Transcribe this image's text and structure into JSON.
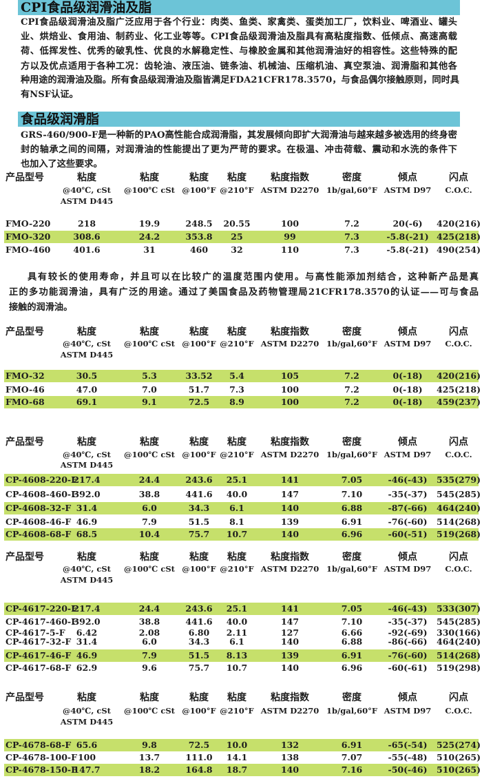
{
  "colors": {
    "title_bar": "#6cc4d7",
    "highlight_row": "#c6e06b",
    "text": "#1e1e1e"
  },
  "section1": {
    "title": "CPI食品级润滑油及脂",
    "lines": [
      "CPI食品级润滑油及脂广泛应用于各个行业：肉类、鱼类、家禽类、蛋类加工厂，饮料业、啤酒业、罐头",
      "业、烘焙业、食用油、制药业、化工业等等。CPI食品级润滑油及脂具有高粘度指数、低倾点、高速高载",
      "荷、低挥发性、优秀的破乳性、优良的水解稳定性、与橡胶金属和其他润滑油好的相容性。这些特殊的配",
      "方以及优点适用于各种工况：齿轮油、液压油、链条油、机械油、压缩机油、真空泵油、润滑脂和其他各",
      "种用途的润滑油及脂。所有食品级润滑油及脂皆满足FDA21CFR178.3570，与食品偶尔接触原则，同时具",
      "有NSF认证。"
    ]
  },
  "section2": {
    "title": "食品级润滑脂",
    "lines": [
      "GRS-460/900-F是一种新的PAO高性能合成润滑脂，其发展倾向即扩大润滑油与越来越多被选用的终身密",
      "封的轴承之间的间隔，对润滑油的性能提出了更为严苛的要求。在极温、冲击荷载、震动和水洗的条件下",
      "也加入了这些要求。"
    ]
  },
  "section3": {
    "lines": [
      "具有较长的使用寿命，并且可以在比较广的温度范围内使用。与高性能添加剂结合，这种新产品是真",
      "正的多功能润滑油，具有广泛的用途。通过了美国食品及药物管理局21CFR178.3570的认证——可与食品",
      "接触的润滑油。"
    ]
  },
  "table_columns": [
    {
      "title": "产品型号",
      "sub": []
    },
    {
      "title": "粘度",
      "sub": [
        "@40℃, cSt",
        "ASTM D445"
      ]
    },
    {
      "title": "粘度",
      "sub": [
        "@100℃ cSt"
      ]
    },
    {
      "title": "粘度",
      "sub": [
        "@100°F"
      ]
    },
    {
      "title": "粘度",
      "sub": [
        "@210°F"
      ]
    },
    {
      "title": "粘度指数",
      "sub": [
        "ASTM D2270"
      ]
    },
    {
      "title": "密度",
      "sub": [
        "1b/gal,60°F"
      ]
    },
    {
      "title": "倾点",
      "sub": [
        "ASTM D97"
      ]
    },
    {
      "title": "闪点",
      "sub": [
        "C.O.C."
      ]
    }
  ],
  "tables": [
    {
      "rows": [
        {
          "cells": [
            "FMO-220",
            "218",
            "19.9",
            "248.5",
            "20.55",
            "100",
            "7.2",
            "20(-6)",
            "420(216)"
          ],
          "highlighted": false
        },
        {
          "cells": [
            "FMO-320",
            "308.6",
            "24.2",
            "353.8",
            "25",
            "99",
            "7.3",
            "-5.8(-21)",
            "425(218)"
          ],
          "highlighted": true
        },
        {
          "cells": [
            "FMO-460",
            "401.6",
            "31",
            "460",
            "32",
            "110",
            "7.3",
            "-5.8(-21)",
            "490(254)"
          ],
          "highlighted": false
        }
      ]
    },
    {
      "rows": [
        {
          "cells": [
            "FMO-32",
            "30.5",
            "5.3",
            "33.52",
            "5.4",
            "105",
            "7.2",
            "0(-18)",
            "420(216)"
          ],
          "highlighted": true
        },
        {
          "cells": [
            "FMO-46",
            "47.0",
            "7.0",
            "51.7",
            "7.3",
            "100",
            "7.2",
            "0(-18)",
            "425(218)"
          ],
          "highlighted": false
        },
        {
          "cells": [
            "FMO-68",
            "69.1",
            "9.1",
            "72.5",
            "8.9",
            "100",
            "7.2",
            "0(-18)",
            "459(237)"
          ],
          "highlighted": true
        }
      ]
    },
    {
      "rows": [
        {
          "cells": [
            "CP-4608-220-F",
            "217.4",
            "24.4",
            "243.6",
            "25.1",
            "141",
            "7.05",
            "-46(-43)",
            "535(279)"
          ],
          "highlighted": true
        },
        {
          "cells": [
            "CP-4608-460-F",
            "392.0",
            "38.8",
            "441.6",
            "40.0",
            "147",
            "7.10",
            "-35(-37)",
            "545(285)"
          ],
          "highlighted": false
        },
        {
          "cells": [
            "CP-4608-32-F",
            "31.4",
            "6.0",
            "34.3",
            "6.1",
            "140",
            "6.88",
            "-87(-66)",
            "464(240)"
          ],
          "highlighted": true
        },
        {
          "cells": [
            "CP-4608-46-F",
            "46.9",
            "7.9",
            "51.5",
            "8.1",
            "139",
            "6.91",
            "-76(-60)",
            "514(268)"
          ],
          "highlighted": false
        },
        {
          "cells": [
            "CP-4608-68-F",
            "68.5",
            "10.4",
            "75.7",
            "10.7",
            "140",
            "6.96",
            "-60(-51)",
            "519(268)"
          ],
          "highlighted": true
        }
      ]
    },
    {
      "rows": [
        {
          "cells": [
            "CP-4617-220-F",
            "217.4",
            "24.4",
            "243.6",
            "25.1",
            "141",
            "7.05",
            "-46(-43)",
            "533(307)"
          ],
          "highlighted": true
        },
        {
          "cells": [
            "CP-4617-460-F",
            "392.0",
            "38.8",
            "441.6",
            "40.0",
            "147",
            "7.10",
            "-35(-37)",
            "545(285)"
          ],
          "highlighted": false
        },
        {
          "cells": [
            "CP-4617-5-F",
            "6.42",
            "2.08",
            "6.80",
            "2.11",
            "127",
            "6.66",
            "-92(-69)",
            "330(166)"
          ],
          "highlighted": false
        },
        {
          "cells": [
            "CP-4617-32-F",
            "31.4",
            "6.0",
            "34.3",
            "6.1",
            "140",
            "6.88",
            "-86(-66)",
            "464(240)"
          ],
          "highlighted": false
        },
        {
          "cells": [
            "CP-4617-46-F",
            "46.9",
            "7.9",
            "51.5",
            "8.13",
            "139",
            "6.91",
            "-76(-60)",
            "514(268)"
          ],
          "highlighted": true
        },
        {
          "cells": [
            "CP-4617-68-F",
            "62.9",
            "9.6",
            "75.7",
            "10.7",
            "140",
            "6.96",
            "-60(-61)",
            "519(298)"
          ],
          "highlighted": false
        }
      ]
    },
    {
      "rows": [
        {
          "cells": [
            "CP-4678-68-F",
            "65.6",
            "9.8",
            "72.5",
            "10.0",
            "132",
            "6.91",
            "-65(-54)",
            "525(274)"
          ],
          "highlighted": true
        },
        {
          "cells": [
            "CP-4678-100-F",
            "100",
            "13.7",
            "111.0",
            "14.1",
            "138",
            "7.07",
            "-55(-48)",
            "510(265)"
          ],
          "highlighted": false
        },
        {
          "cells": [
            "CP-4678-150-F",
            "147.7",
            "18.2",
            "164.8",
            "18.7",
            "140",
            "7.16",
            "-50(-46)",
            "510(265)"
          ],
          "highlighted": true
        }
      ]
    }
  ]
}
